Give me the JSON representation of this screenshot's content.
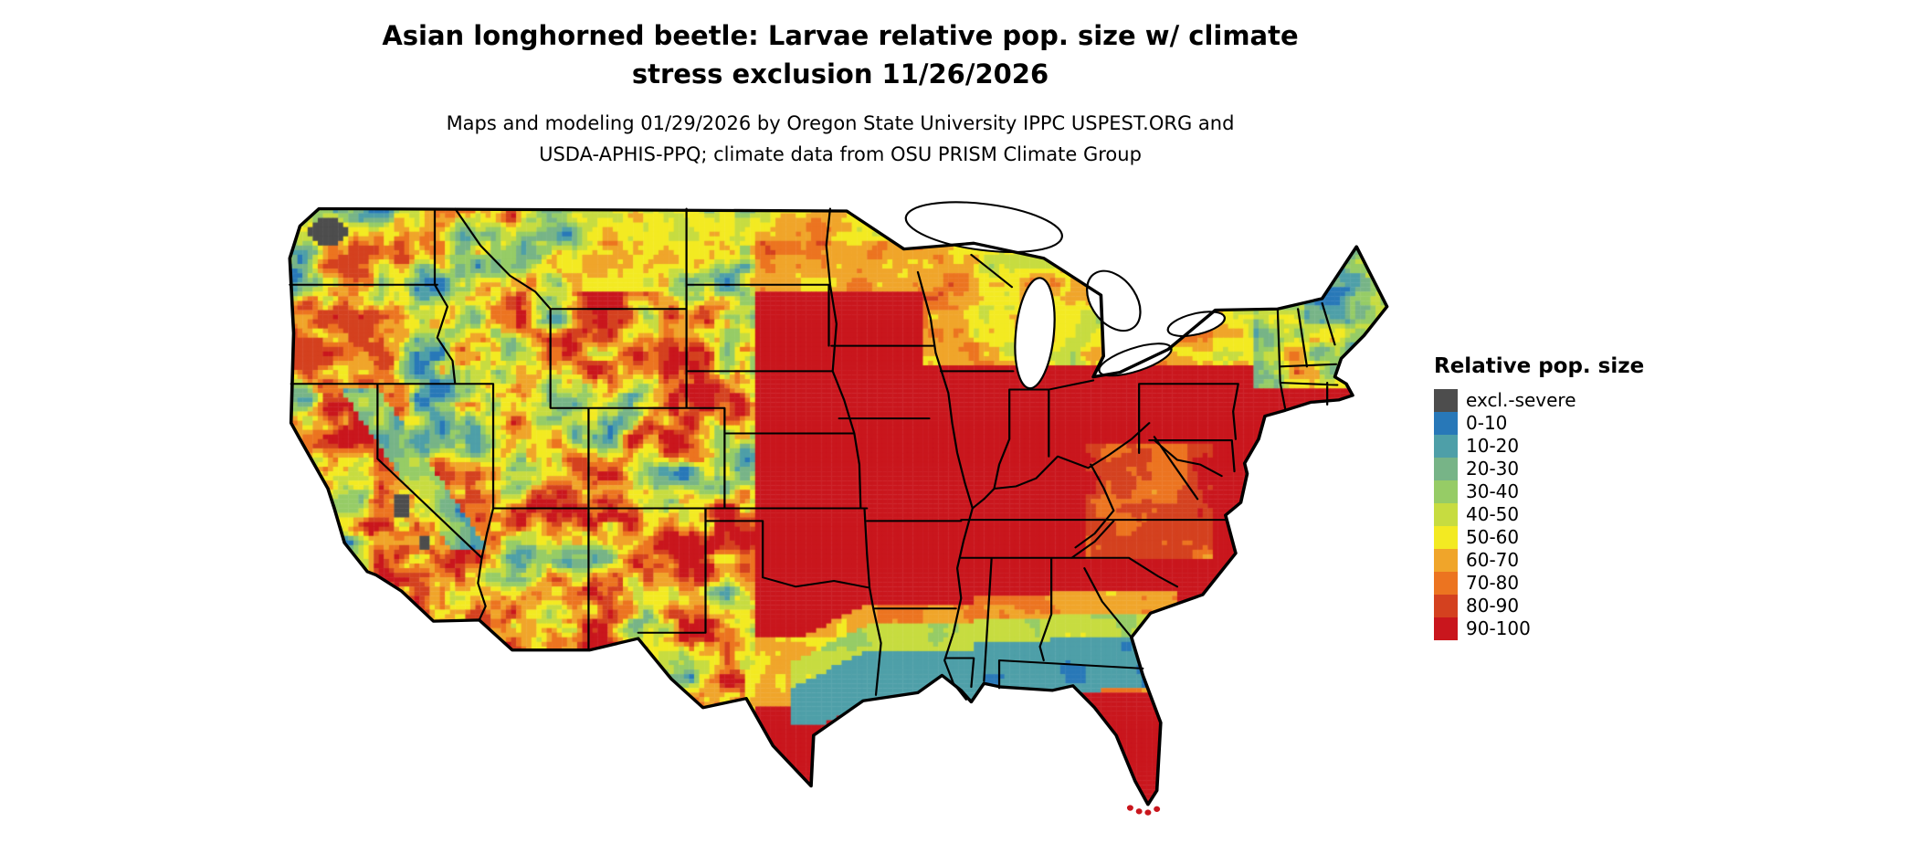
{
  "header": {
    "title_line1": "Asian longhorned beetle: Larvae relative pop. size w/ climate",
    "title_line2": "stress exclusion 11/26/2026",
    "subtitle_line1": "Maps and modeling 01/29/2026 by Oregon State University IPPC USPEST.ORG and",
    "subtitle_line2": "USDA-APHIS-PPQ; climate data from OSU PRISM Climate Group"
  },
  "legend": {
    "title": "Relative pop. size",
    "entries": [
      {
        "label": "excl.-severe",
        "color": "#4d4d4d"
      },
      {
        "label": "0-10",
        "color": "#2878b8"
      },
      {
        "label": "10-20",
        "color": "#4e9fa8"
      },
      {
        "label": "20-30",
        "color": "#77b487"
      },
      {
        "label": "30-40",
        "color": "#96cc66"
      },
      {
        "label": "40-50",
        "color": "#c7dc40"
      },
      {
        "label": "50-60",
        "color": "#f3ea22"
      },
      {
        "label": "60-70",
        "color": "#f0a52a"
      },
      {
        "label": "70-80",
        "color": "#ec7420"
      },
      {
        "label": "80-90",
        "color": "#d4411f"
      },
      {
        "label": "90-100",
        "color": "#c9161d"
      }
    ]
  },
  "map": {
    "region": "Continental United States",
    "water_color": "#ffffff",
    "boundary_color": "#000000",
    "dominant_bin": "90-100"
  }
}
